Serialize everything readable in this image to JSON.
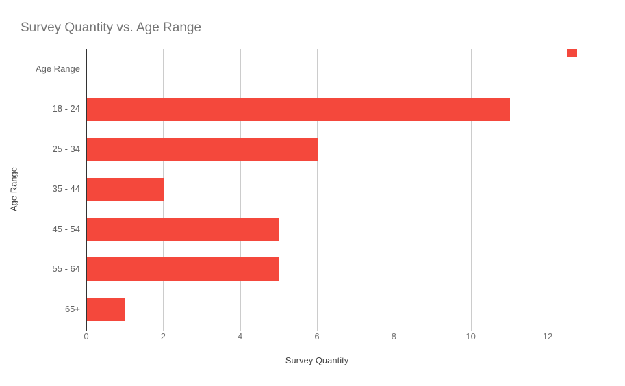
{
  "chart_data": {
    "type": "bar",
    "orientation": "horizontal",
    "title": "Survey Quantity vs. Age Range",
    "xlabel": "Survey Quantity",
    "ylabel": "Age Range",
    "categories": [
      "Age Range",
      "18 - 24",
      "25 - 34",
      "35 - 44",
      "45 - 54",
      "55 - 64",
      "65+"
    ],
    "values": [
      0,
      11,
      6,
      2,
      5,
      5,
      1
    ],
    "xlim": [
      0,
      12
    ],
    "xticks": [
      0,
      2,
      4,
      6,
      8,
      10,
      12
    ],
    "grid": true,
    "legend": {
      "position": "top-right",
      "label": ""
    },
    "colors": {
      "bar": "#F4483C",
      "title_text": "#757575",
      "tick_text": "#757575",
      "category_text": "#616161",
      "axis_title_text": "#424242",
      "gridline": "#cccccc",
      "zero_line": "#333333",
      "background": "#ffffff"
    }
  }
}
